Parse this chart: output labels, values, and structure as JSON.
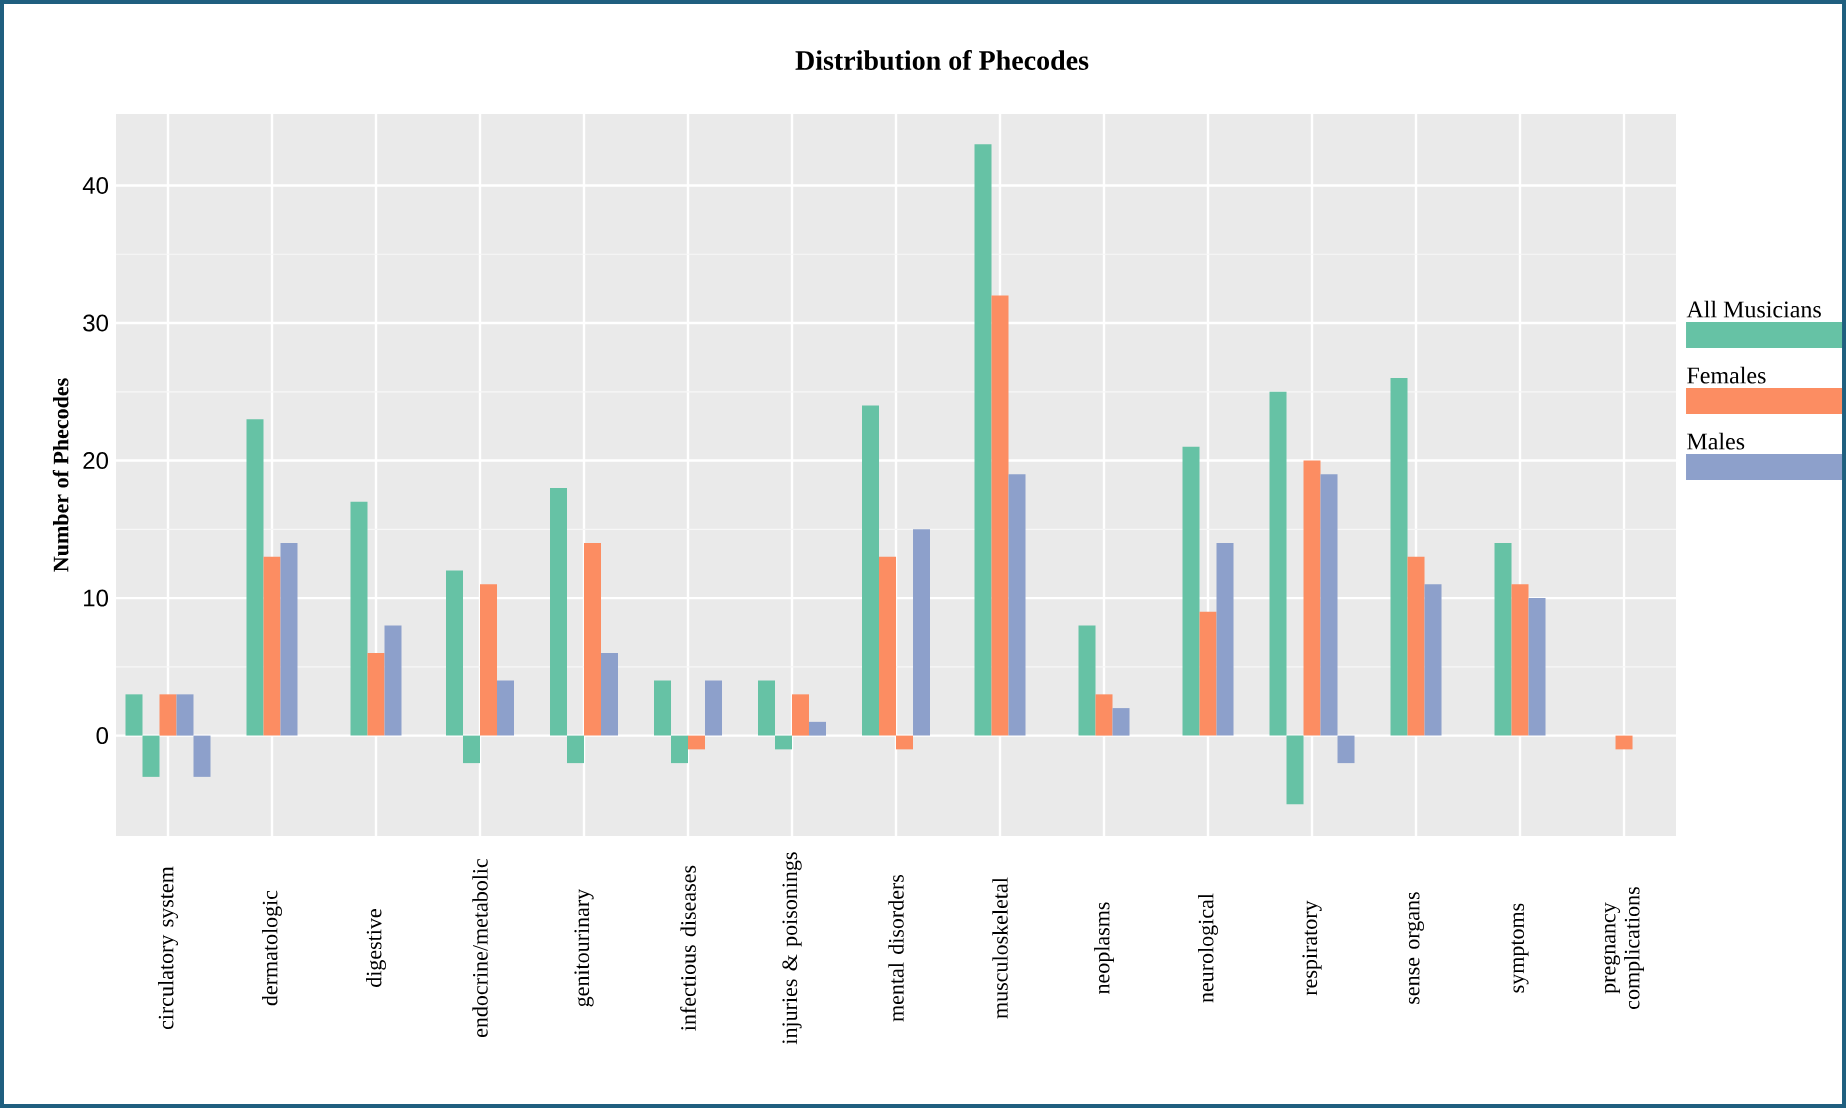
{
  "chart_data": {
    "type": "bar",
    "title": "Distribution of Phecodes",
    "ylabel": "Number of Phecodes",
    "categories": [
      "circulatory system",
      "dermatologic",
      "digestive",
      "endocrine/metabolic",
      "genitourinary",
      "infectious diseases",
      "injuries & poisonings",
      "mental disorders",
      "musculoskeletal",
      "neoplasms",
      "neurological",
      "respiratory",
      "sense organs",
      "symptoms",
      "pregnancy complications"
    ],
    "series": [
      {
        "name": "All Musicians",
        "color": "#66c2a5",
        "values": [
          3,
          23,
          17,
          12,
          18,
          4,
          4,
          24,
          43,
          8,
          21,
          25,
          26,
          14,
          null
        ]
      },
      {
        "color": "#66c2a5",
        "values": [
          -3,
          null,
          null,
          -2,
          -2,
          -2,
          -1,
          null,
          null,
          null,
          null,
          -5,
          null,
          null,
          null
        ]
      },
      {
        "name": "Females",
        "color": "#fc8d62",
        "values": [
          3,
          13,
          6,
          11,
          14,
          null,
          3,
          13,
          32,
          3,
          9,
          20,
          13,
          11,
          null
        ]
      },
      {
        "color": "#fc8d62",
        "values": [
          null,
          null,
          null,
          null,
          null,
          -1,
          null,
          -1,
          null,
          null,
          null,
          null,
          null,
          null,
          -1
        ]
      },
      {
        "name": "Males",
        "color": "#8da0cb",
        "values": [
          3,
          14,
          8,
          4,
          6,
          4,
          1,
          15,
          19,
          2,
          14,
          19,
          11,
          10,
          null
        ]
      },
      {
        "color": "#8da0cb",
        "values": [
          -3,
          null,
          null,
          null,
          null,
          null,
          null,
          null,
          null,
          null,
          null,
          -2,
          null,
          null,
          null
        ]
      }
    ],
    "ylim": [
      -7.3,
      45.2
    ],
    "yticks": [
      0,
      10,
      20,
      30,
      40
    ],
    "grid": true,
    "legend": "right"
  }
}
